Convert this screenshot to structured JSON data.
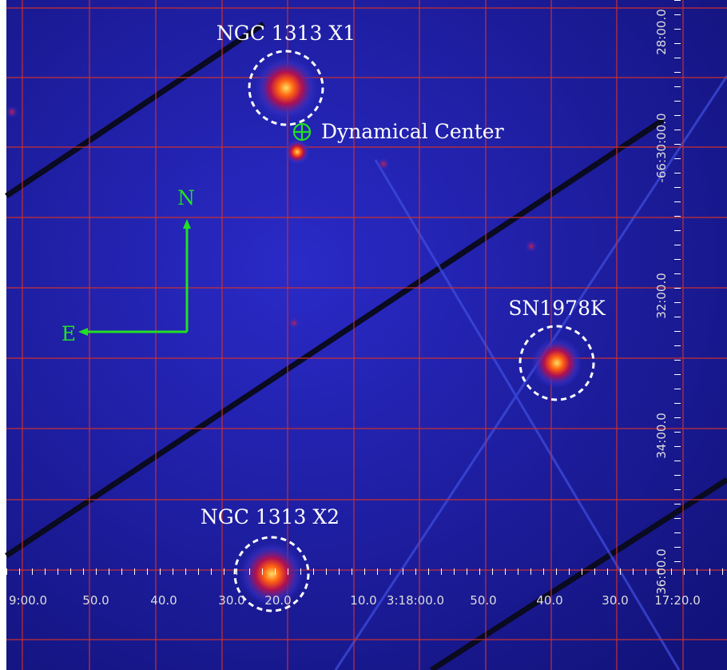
{
  "sources": [
    {
      "label": "NGC 1313 X1"
    },
    {
      "label": "SN1978K"
    },
    {
      "label": "NGC 1313 X2"
    }
  ],
  "marker": {
    "label": "Dynamical Center"
  },
  "compass": {
    "north": "N",
    "east": "E"
  },
  "ra_axis": [
    "9:00.0",
    "50.0",
    "40.0",
    "30.0",
    "20.0",
    "10.0",
    "3:18:00.0",
    "50.0",
    "40.0",
    "30.0",
    "17:20.0"
  ],
  "dec_axis": [
    "28:00.0",
    "-66:30:00.0",
    "32:00.0",
    "34:00.0",
    "36:00.0"
  ]
}
